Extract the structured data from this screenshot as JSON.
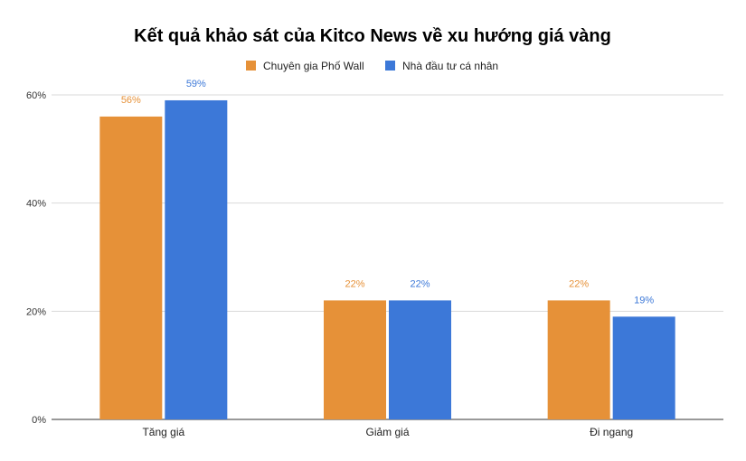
{
  "chart_data": {
    "type": "bar",
    "title": "Kết quả khảo sát của Kitco News về xu hướng giá vàng",
    "categories": [
      "Tăng giá",
      "Giảm giá",
      "Đi ngang"
    ],
    "series": [
      {
        "name": "Chuyên gia Phố Wall",
        "color": "#e69138",
        "values": [
          56,
          22,
          22
        ],
        "labels": [
          "56%",
          "22%",
          "22%"
        ]
      },
      {
        "name": "Nhà đầu tư cá nhân",
        "color": "#3c78d8",
        "values": [
          59,
          22,
          19
        ],
        "labels": [
          "59%",
          "22%",
          "19%"
        ]
      }
    ],
    "ylim": [
      0,
      60
    ],
    "yticks": [
      0,
      20,
      40,
      60
    ],
    "ytick_labels": [
      "0%",
      "20%",
      "40%",
      "60%"
    ],
    "grid": true,
    "legend_position": "top-center"
  }
}
